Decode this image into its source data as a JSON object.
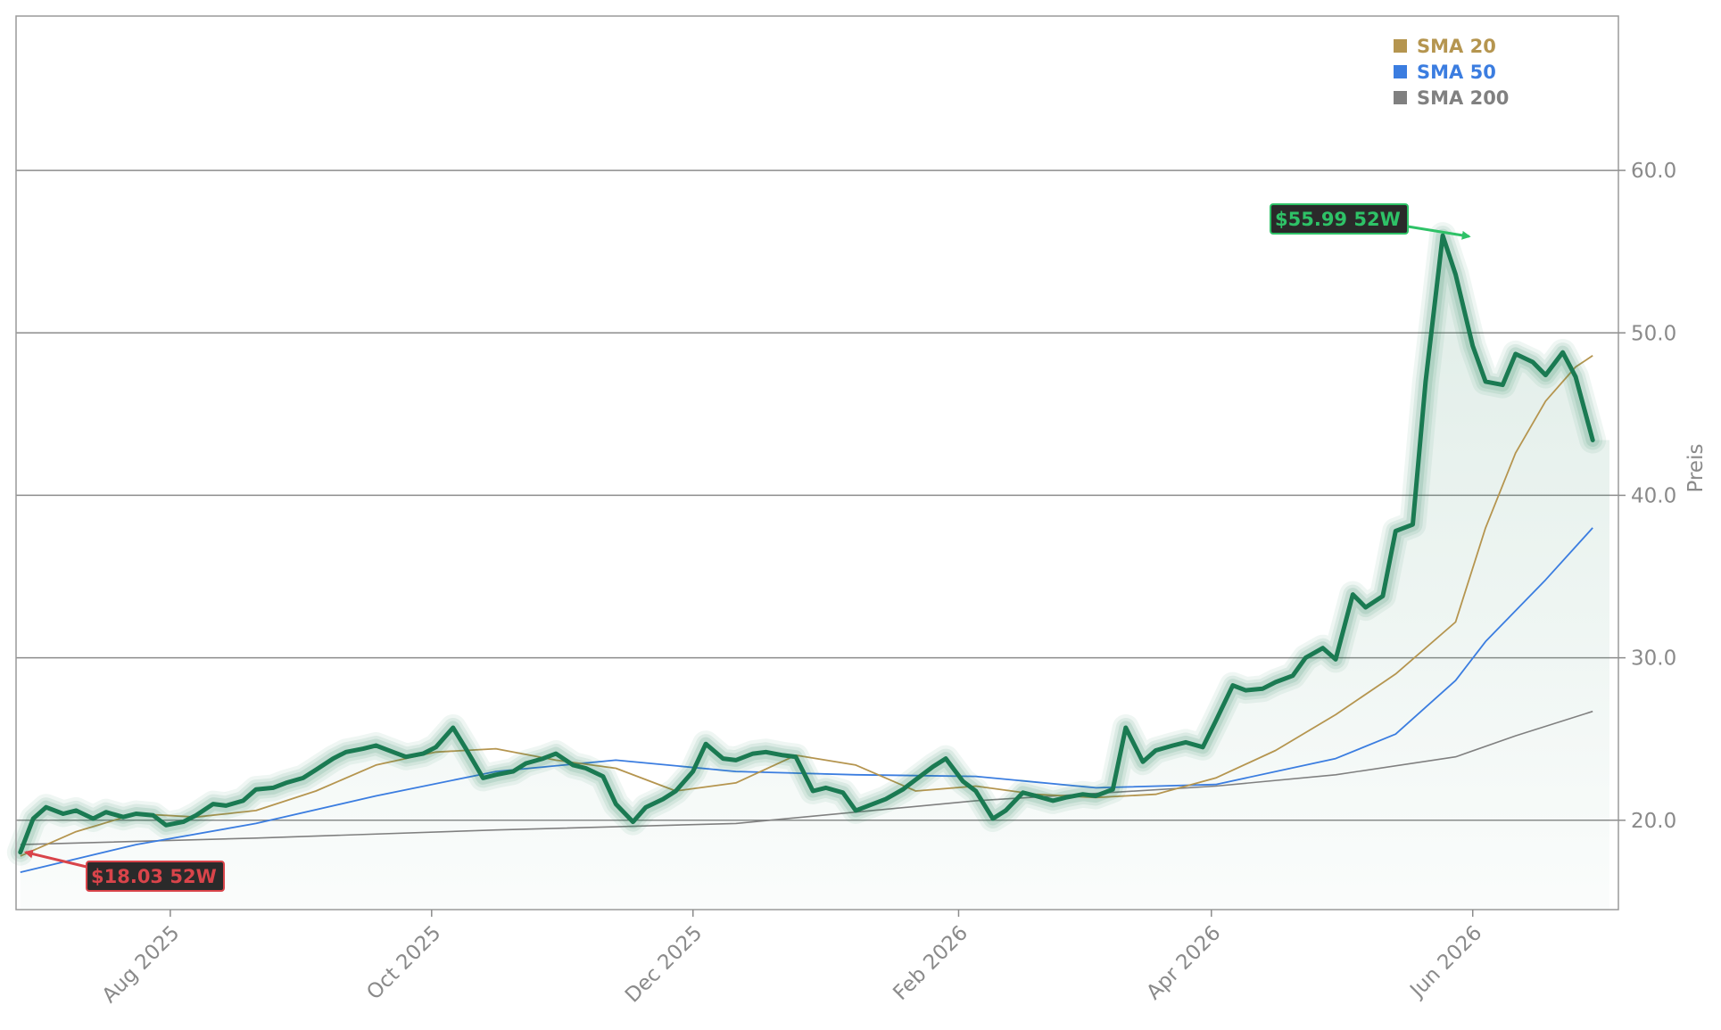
{
  "chart_data": {
    "type": "line",
    "ylabel": "Preis",
    "ylim": [
      14.5,
      69.5
    ],
    "xlim": [
      "2025-06-26",
      "2026-07-05"
    ],
    "y_ticks": [
      {
        "value": 20,
        "label": "20.0"
      },
      {
        "value": 30,
        "label": "30.0"
      },
      {
        "value": 40,
        "label": "40.0"
      },
      {
        "value": 50,
        "label": "50.0"
      },
      {
        "value": 60,
        "label": "60.0"
      }
    ],
    "x_ticks": [
      {
        "date": "2025-08-01",
        "label": "Aug 2025"
      },
      {
        "date": "2025-10-01",
        "label": "Oct 2025"
      },
      {
        "date": "2025-12-01",
        "label": "Dec 2025"
      },
      {
        "date": "2026-02-01",
        "label": "Feb 2026"
      },
      {
        "date": "2026-04-01",
        "label": "Apr 2026"
      },
      {
        "date": "2026-06-01",
        "label": "Jun 2026"
      }
    ],
    "grid": {
      "horizontal": true,
      "vertical": false
    },
    "legend_position": "top-right",
    "legend": [
      {
        "label": "SMA 20",
        "color": "#b5954f"
      },
      {
        "label": "SMA 50",
        "color": "#3b7de0"
      },
      {
        "label": "SMA 200",
        "color": "#808080"
      }
    ],
    "colors": {
      "price": "#1a7a52",
      "sma20": "#b5954f",
      "sma50": "#3b7de0",
      "sma200": "#808080",
      "low": "#d9444a",
      "high": "#2ec267"
    },
    "annotations": [
      {
        "label": "$55.99 52W",
        "date": "2026-06-01",
        "value": 55.99,
        "color": "#2ec267"
      },
      {
        "label": "$18.03 52W",
        "date": "2025-06-27",
        "value": 18.03,
        "color": "#d9444a"
      }
    ],
    "price_last": 43.4,
    "series": [
      {
        "key": "price",
        "x": [
          "2025-06-27",
          "2025-06-30",
          "2025-07-03",
          "2025-07-07",
          "2025-07-10",
          "2025-07-14",
          "2025-07-17",
          "2025-07-21",
          "2025-07-24",
          "2025-07-28",
          "2025-07-31",
          "2025-08-04",
          "2025-08-07",
          "2025-08-11",
          "2025-08-14",
          "2025-08-18",
          "2025-08-21",
          "2025-08-25",
          "2025-08-28",
          "2025-09-01",
          "2025-09-04",
          "2025-09-08",
          "2025-09-11",
          "2025-09-15",
          "2025-09-18",
          "2025-09-22",
          "2025-09-25",
          "2025-09-29",
          "2025-10-02",
          "2025-10-06",
          "2025-10-09",
          "2025-10-13",
          "2025-10-16",
          "2025-10-20",
          "2025-10-23",
          "2025-10-27",
          "2025-10-30",
          "2025-11-03",
          "2025-11-06",
          "2025-11-10",
          "2025-11-13",
          "2025-11-17",
          "2025-11-20",
          "2025-11-24",
          "2025-11-27",
          "2025-12-01",
          "2025-12-04",
          "2025-12-08",
          "2025-12-11",
          "2025-12-15",
          "2025-12-18",
          "2025-12-22",
          "2025-12-25",
          "2025-12-29",
          "2026-01-01",
          "2026-01-05",
          "2026-01-08",
          "2026-01-12",
          "2026-01-15",
          "2026-01-19",
          "2026-01-22",
          "2026-01-26",
          "2026-01-29",
          "2026-02-02",
          "2026-02-05",
          "2026-02-09",
          "2026-02-12",
          "2026-02-16",
          "2026-02-19",
          "2026-02-23",
          "2026-02-26",
          "2026-03-02",
          "2026-03-05",
          "2026-03-09",
          "2026-03-12",
          "2026-03-16",
          "2026-03-19",
          "2026-03-23",
          "2026-03-26",
          "2026-03-30",
          "2026-04-02",
          "2026-04-06",
          "2026-04-09",
          "2026-04-13",
          "2026-04-16",
          "2026-04-20",
          "2026-04-23",
          "2026-04-27",
          "2026-04-30",
          "2026-05-04",
          "2026-05-07",
          "2026-05-11",
          "2026-05-14",
          "2026-05-18",
          "2026-05-21",
          "2026-05-25",
          "2026-05-28",
          "2026-06-01",
          "2026-06-04",
          "2026-06-08",
          "2026-06-11",
          "2026-06-15",
          "2026-06-18",
          "2026-06-22",
          "2026-06-25",
          "2026-06-29"
        ],
        "values": [
          18.03,
          20.1,
          20.8,
          20.4,
          20.6,
          20.1,
          20.5,
          20.2,
          20.4,
          20.3,
          19.7,
          19.9,
          20.3,
          21.0,
          20.9,
          21.2,
          21.9,
          22.0,
          22.3,
          22.6,
          23.1,
          23.8,
          24.2,
          24.4,
          24.6,
          24.2,
          23.9,
          24.1,
          24.5,
          25.7,
          24.4,
          22.6,
          22.8,
          23.0,
          23.5,
          23.8,
          24.1,
          23.4,
          23.2,
          22.7,
          21.0,
          19.9,
          20.8,
          21.3,
          21.8,
          23.0,
          24.7,
          23.8,
          23.7,
          24.1,
          24.2,
          24.0,
          23.9,
          21.8,
          22.0,
          21.7,
          20.6,
          21.0,
          21.3,
          21.9,
          22.5,
          23.3,
          23.8,
          22.4,
          21.8,
          20.1,
          20.6,
          21.7,
          21.5,
          21.2,
          21.4,
          21.6,
          21.5,
          21.9,
          25.7,
          23.6,
          24.3,
          24.6,
          24.8,
          24.5,
          26.1,
          28.3,
          28.0,
          28.1,
          28.5,
          28.9,
          30.0,
          30.6,
          29.9,
          33.9,
          33.1,
          33.8,
          37.8,
          38.2,
          47.0,
          55.99,
          53.6,
          49.2,
          47.0,
          46.8,
          48.7,
          48.2,
          47.4,
          48.8,
          47.3,
          43.4
        ]
      },
      {
        "key": "sma20",
        "x": [
          "2025-06-27",
          "2025-07-10",
          "2025-07-24",
          "2025-08-07",
          "2025-08-21",
          "2025-09-04",
          "2025-09-18",
          "2025-10-02",
          "2025-10-16",
          "2025-10-30",
          "2025-11-13",
          "2025-11-27",
          "2025-12-11",
          "2025-12-25",
          "2026-01-08",
          "2026-01-22",
          "2026-02-05",
          "2026-02-19",
          "2026-03-05",
          "2026-03-19",
          "2026-04-02",
          "2026-04-16",
          "2026-04-30",
          "2026-05-14",
          "2026-05-28",
          "2026-06-04",
          "2026-06-11",
          "2026-06-18",
          "2026-06-25",
          "2026-06-29"
        ],
        "values": [
          17.8,
          19.3,
          20.4,
          20.2,
          20.6,
          21.8,
          23.4,
          24.2,
          24.4,
          23.7,
          23.2,
          21.8,
          22.3,
          24.0,
          23.4,
          21.8,
          22.1,
          21.6,
          21.4,
          21.6,
          22.6,
          24.3,
          26.5,
          29.0,
          32.2,
          38.0,
          42.6,
          45.8,
          47.9,
          48.6
        ]
      },
      {
        "key": "sma50",
        "x": [
          "2025-06-27",
          "2025-07-24",
          "2025-08-21",
          "2025-09-18",
          "2025-10-16",
          "2025-11-13",
          "2025-12-11",
          "2026-01-08",
          "2026-02-05",
          "2026-03-05",
          "2026-04-02",
          "2026-04-30",
          "2026-05-14",
          "2026-05-28",
          "2026-06-04",
          "2026-06-18",
          "2026-06-29"
        ],
        "values": [
          16.8,
          18.5,
          19.8,
          21.5,
          23.0,
          23.7,
          23.0,
          22.8,
          22.7,
          22.0,
          22.2,
          23.8,
          25.3,
          28.6,
          31.0,
          34.8,
          38.0
        ]
      },
      {
        "key": "sma200",
        "x": [
          "2025-06-27",
          "2025-08-21",
          "2025-10-16",
          "2025-12-11",
          "2026-02-05",
          "2026-04-02",
          "2026-04-30",
          "2026-05-28",
          "2026-06-11",
          "2026-06-29"
        ],
        "values": [
          18.5,
          18.9,
          19.4,
          19.8,
          21.2,
          22.1,
          22.8,
          23.9,
          25.2,
          26.7
        ]
      }
    ]
  }
}
